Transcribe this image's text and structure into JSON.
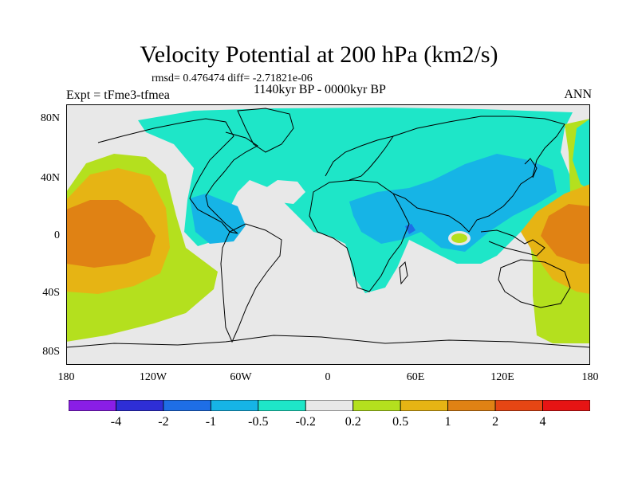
{
  "title": "Velocity Potential at 200 hPa (km2/s)",
  "stats_text": "rmsd= 0.476474 diff= -2.71821e-06",
  "period": "1140kyr BP - 0000kyr BP",
  "experiment": "Expt = tFme3-tfmea",
  "season": "ANN",
  "map": {
    "lat_ticks": [
      "80N",
      "40N",
      "0",
      "40S",
      "80S"
    ],
    "lon_ticks": [
      "180",
      "120W",
      "60W",
      "0",
      "60E",
      "120E",
      "180"
    ],
    "background_color": "#e8e8e8"
  },
  "colorbar": {
    "colors": [
      "#8a1ee6",
      "#2e2ed6",
      "#1e6ee6",
      "#16b4e6",
      "#1ee6c8",
      "#e8e8e8",
      "#b4e01e",
      "#e6b414",
      "#e08214",
      "#e64614",
      "#e61414"
    ],
    "labels": [
      "-4",
      "-2",
      "-1",
      "-0.5",
      "-0.2",
      "0.2",
      "0.5",
      "1",
      "2",
      "4"
    ]
  }
}
